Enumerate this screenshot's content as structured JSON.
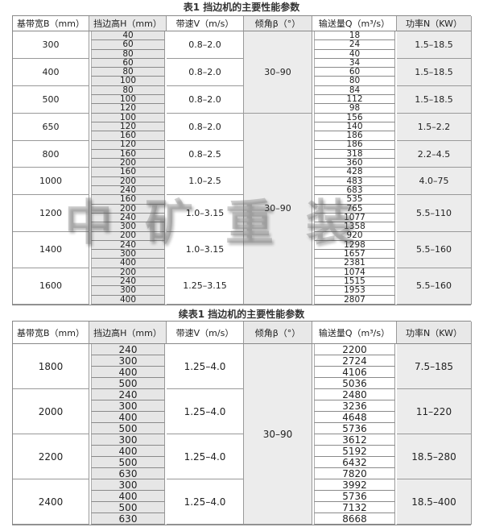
{
  "watermark": "中矿重装",
  "tables": [
    {
      "title": "表1 挡边机的主要性能参数",
      "headers": [
        "基带宽B（mm）",
        "挡边高H（mm）",
        "带速V（m/s）",
        "倾角β（°）",
        "输送量Q（m³/s）",
        "功率N（KW）"
      ],
      "angle_segments": [
        {
          "value": "30–90",
          "groups": 3
        },
        {
          "value": "30–90",
          "groups": 6
        }
      ],
      "groups": [
        {
          "width": "300",
          "heights": [
            "40",
            "60",
            "80"
          ],
          "speed": "0.8–2.0",
          "capacities": [
            "18",
            "24",
            "40"
          ],
          "power": "1.5–18.5"
        },
        {
          "width": "400",
          "heights": [
            "60",
            "80",
            "100"
          ],
          "speed": "0.8–2.0",
          "capacities": [
            "34",
            "60",
            "80"
          ],
          "power": "1.5–18.5"
        },
        {
          "width": "500",
          "heights": [
            "80",
            "100",
            "120"
          ],
          "speed": "0.8–2.0",
          "capacities": [
            "84",
            "112",
            "98"
          ],
          "power": "1.5–18.5"
        },
        {
          "width": "650",
          "heights": [
            "100",
            "120",
            "160"
          ],
          "speed": "0.8–2.0",
          "capacities": [
            "156",
            "140",
            "186"
          ],
          "power": "1.5–2.2"
        },
        {
          "width": "800",
          "heights": [
            "120",
            "160",
            "200"
          ],
          "speed": "0.8–2.5",
          "capacities": [
            "186",
            "318",
            "360"
          ],
          "power": "2.2–4.5"
        },
        {
          "width": "1000",
          "heights": [
            "160",
            "200",
            "240"
          ],
          "speed": "1.0–2.5",
          "capacities": [
            "428",
            "483",
            "683"
          ],
          "power": "4.0–75"
        },
        {
          "width": "1200",
          "heights": [
            "160",
            "200",
            "240",
            "300"
          ],
          "speed": "1.0–3.15",
          "capacities": [
            "535",
            "765",
            "1077",
            "1358"
          ],
          "power": "5.5–110"
        },
        {
          "width": "1400",
          "heights": [
            "200",
            "240",
            "300",
            "400"
          ],
          "speed": "1.0–3.15",
          "capacities": [
            "920",
            "1298",
            "1657",
            "2381"
          ],
          "power": "5.5–160"
        },
        {
          "width": "1600",
          "heights": [
            "200",
            "240",
            "300",
            "400"
          ],
          "speed": "1.25–3.15",
          "capacities": [
            "1074",
            "1515",
            "1953",
            "2807"
          ],
          "power": "5.5–160"
        }
      ]
    },
    {
      "title": "续表1 挡边机的主要性能参数",
      "headers": [
        "基带宽B（mm）",
        "挡边高H（mm）",
        "带速V（m/s）",
        "倾角β（°）",
        "输送量Q（m³/s）",
        "功率N（KW）"
      ],
      "angle_segments": [
        {
          "value": "30–90",
          "groups": 4
        }
      ],
      "groups": [
        {
          "width": "1800",
          "heights": [
            "240",
            "300",
            "400",
            "500"
          ],
          "speed": "1.25–4.0",
          "capacities": [
            "2200",
            "2724",
            "4106",
            "5036"
          ],
          "power": "7.5–185"
        },
        {
          "width": "2000",
          "heights": [
            "240",
            "300",
            "400",
            "500"
          ],
          "speed": "1.25–4.0",
          "capacities": [
            "2480",
            "3236",
            "4648",
            "5736"
          ],
          "power": "11–220"
        },
        {
          "width": "2200",
          "heights": [
            "300",
            "400",
            "500",
            "630"
          ],
          "speed": "1.25–4.0",
          "capacities": [
            "3612",
            "5192",
            "6432",
            "7820"
          ],
          "power": "18.5–280"
        },
        {
          "width": "2400",
          "heights": [
            "300",
            "400",
            "500",
            "630"
          ],
          "speed": "1.25–4.0",
          "capacities": [
            "3992",
            "5736",
            "7132",
            "8668"
          ],
          "power": "18.5–400"
        }
      ]
    }
  ]
}
